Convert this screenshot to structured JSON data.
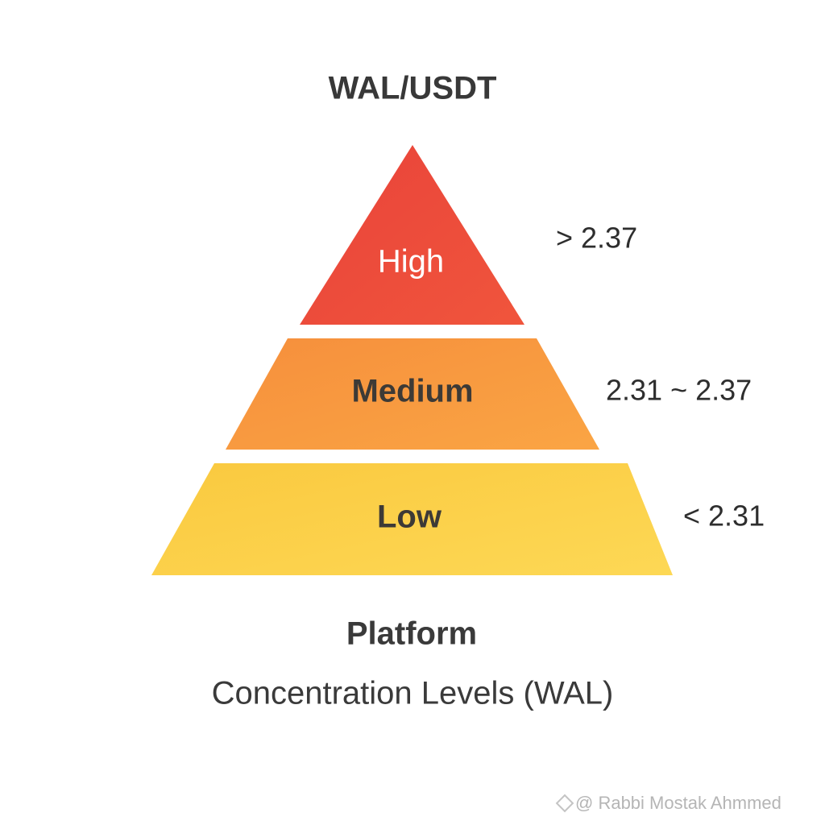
{
  "header": {
    "title": "WAL/USDT"
  },
  "levels": [
    {
      "label": "High",
      "range": "> 2.37"
    },
    {
      "label": "Medium",
      "range": "2.31 ~ 2.37"
    },
    {
      "label": "Low",
      "range": "< 2.31"
    }
  ],
  "footer": {
    "title": "Platform",
    "subtitle": "Concentration Levels (WAL)"
  },
  "watermark": "@ Rabbi  Mostak Ahmmed"
}
